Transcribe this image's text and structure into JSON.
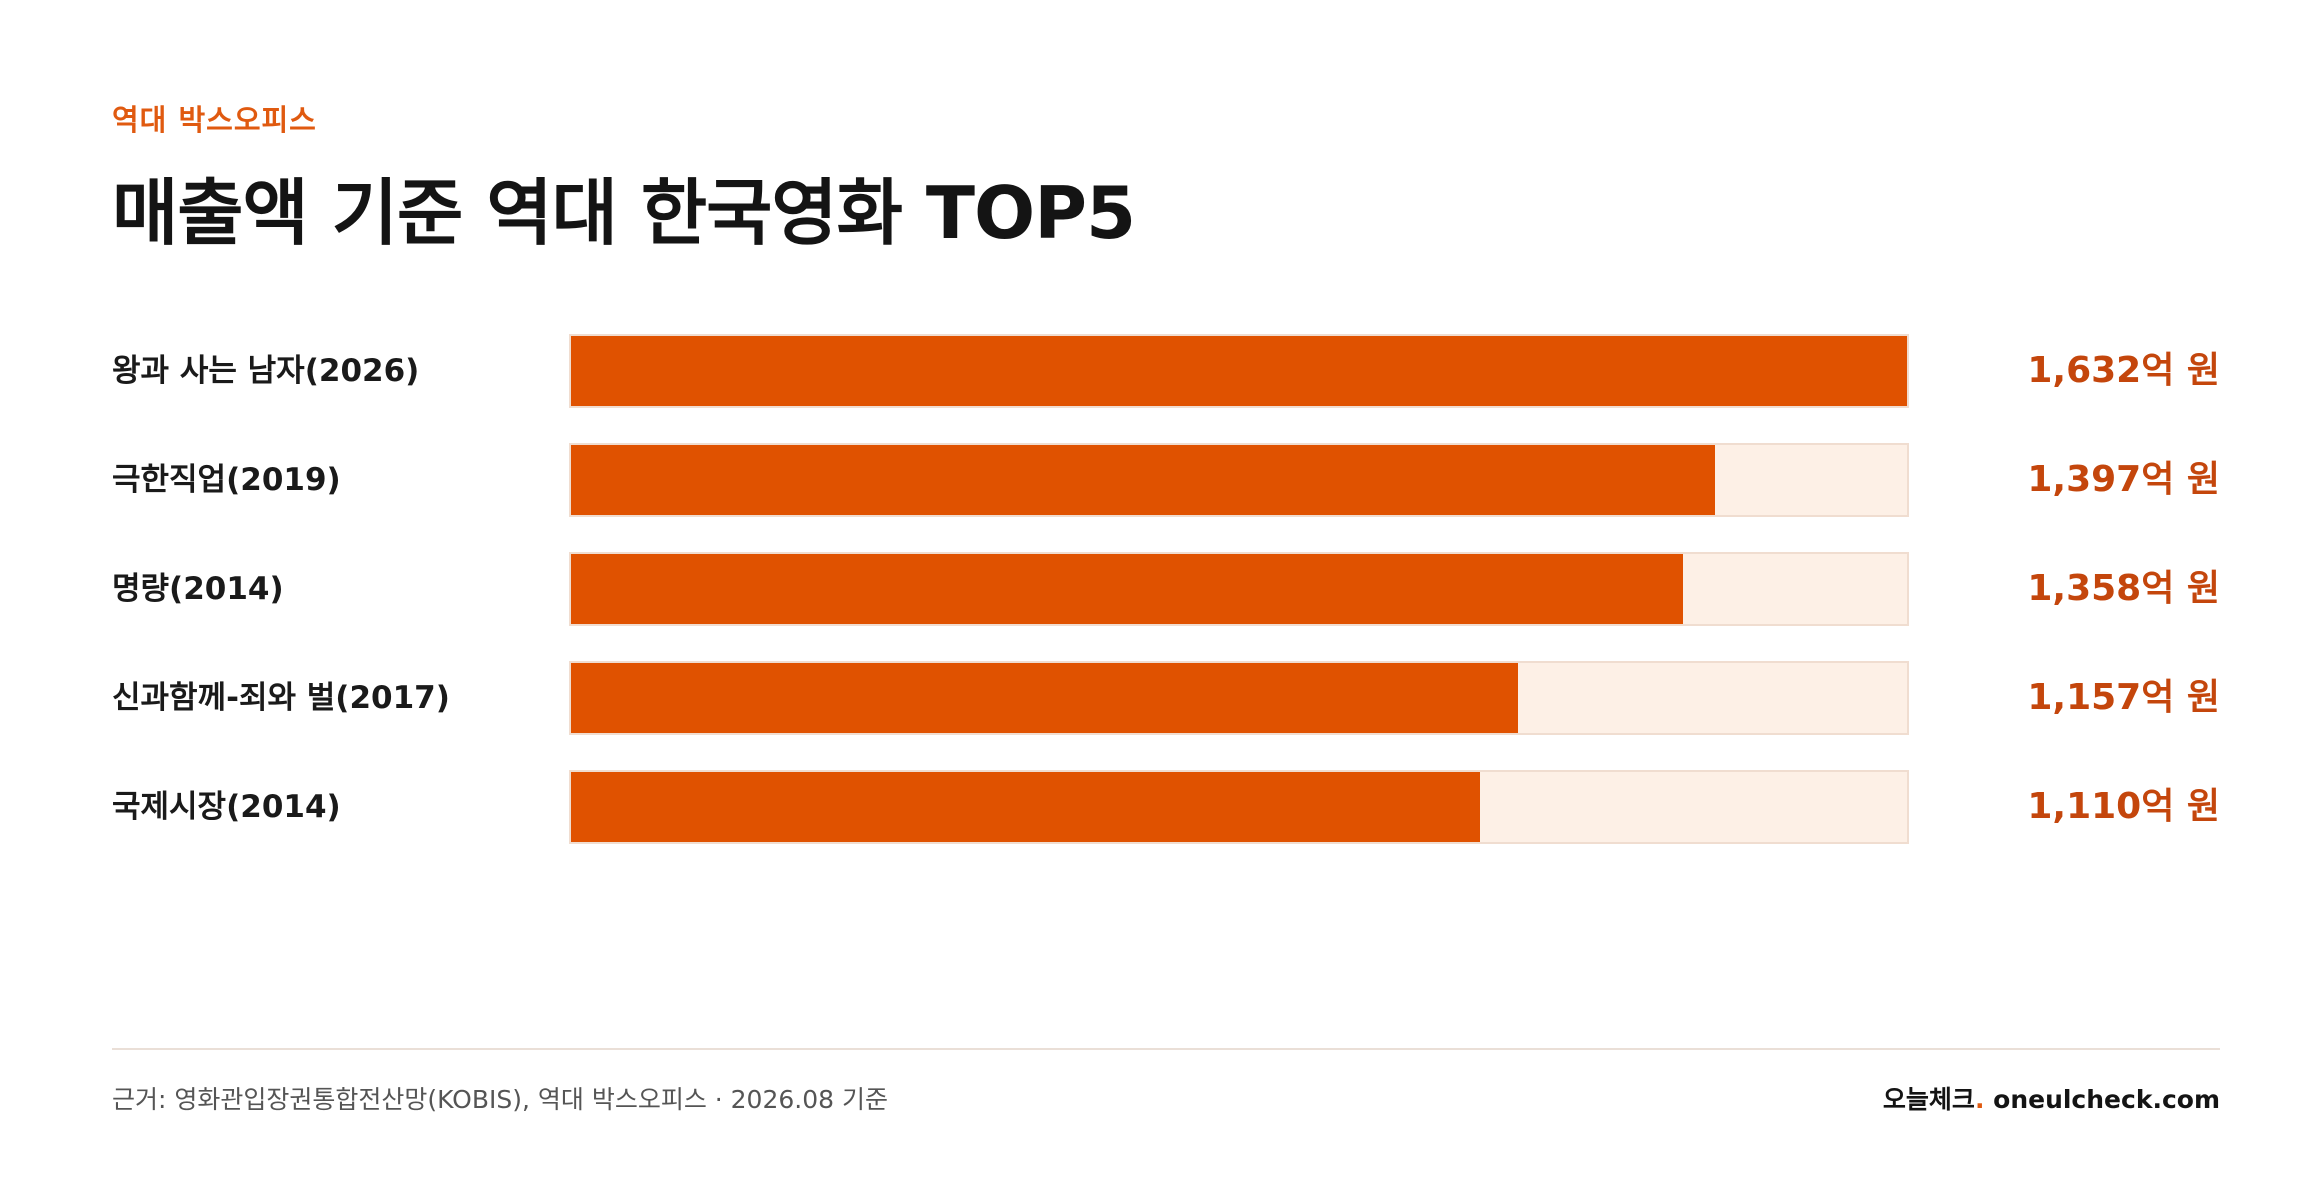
{
  "header": {
    "eyebrow": "역대 박스오피스",
    "title": "매출액 기준 역대 한국영화 TOP5"
  },
  "chart_data": {
    "type": "bar",
    "orientation": "horizontal",
    "categories": [
      "왕과 사는 남자(2026)",
      "극한직업(2019)",
      "명량(2014)",
      "신과함께-죄와 벌(2017)",
      "국제시장(2014)"
    ],
    "values": [
      1632,
      1397,
      1358,
      1157,
      1110
    ],
    "value_labels": [
      "1,632억 원",
      "1,397억 원",
      "1,358억 원",
      "1,157억 원",
      "1,110억 원"
    ],
    "xlim": [
      0,
      1632
    ],
    "grid": false,
    "colors": {
      "bar": "#e05200",
      "track": "#fdf0e6",
      "value_text": "#c4460c"
    }
  },
  "footer": {
    "source": "근거: 영화관입장권통합전산망(KOBIS), 역대 박스오피스 · 2026.08 기준",
    "brand_name": "오늘체크",
    "brand_dot": ".",
    "brand_domain": " oneulcheck.com"
  }
}
